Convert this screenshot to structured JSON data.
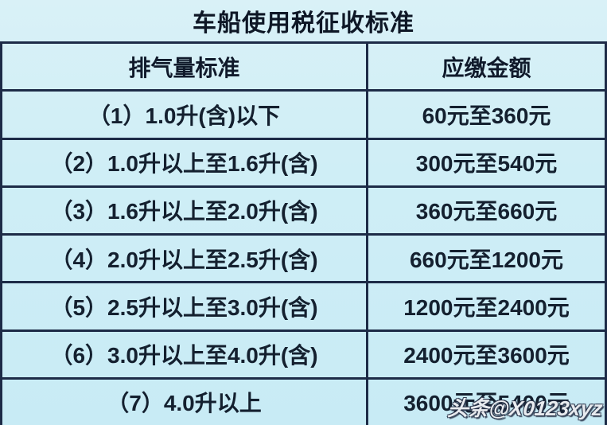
{
  "title": "车船使用税征收标准",
  "table": {
    "headers": {
      "standard": "排气量标准",
      "amount": "应缴金额"
    },
    "rows": [
      {
        "standard": "（1）1.0升(含)以下",
        "amount": "60元至360元"
      },
      {
        "standard": "（2）1.0升以上至1.6升(含)",
        "amount": "300元至540元"
      },
      {
        "standard": "（3）1.6升以上至2.0升(含)",
        "amount": "360元至660元"
      },
      {
        "standard": "（4）2.0升以上至2.5升(含)",
        "amount": "660元至1200元"
      },
      {
        "standard": "（5）2.5升以上至3.0升(含)",
        "amount": "1200元至2400元"
      },
      {
        "standard": "（6）3.0升以上至4.0升(含)",
        "amount": "2400元至3600元"
      },
      {
        "standard": "（7）4.0升以上",
        "amount": "3600元至5400元"
      }
    ]
  },
  "watermark": "头条@X0123xyz",
  "colors": {
    "background": "#cfeef6",
    "border": "#1d2b47",
    "text": "#14202f",
    "watermark_fill": "#fafcfe",
    "watermark_outline": "#222c42"
  }
}
